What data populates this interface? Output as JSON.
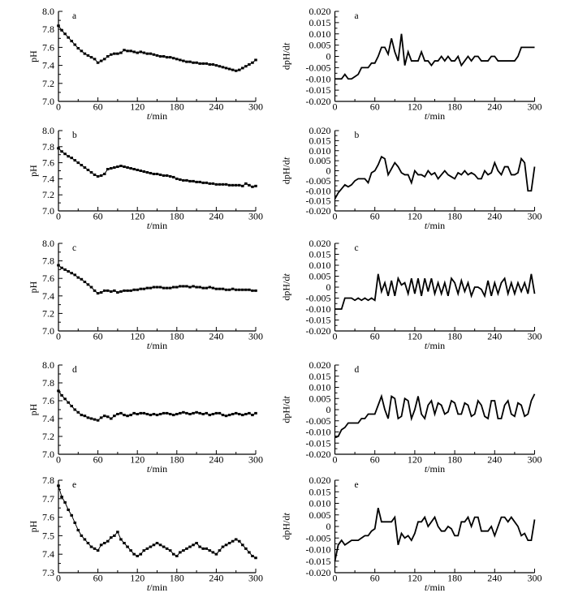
{
  "figure": {
    "background": "#ffffff",
    "ink": "#000000"
  },
  "chart_data": [
    {
      "panel_label": "a",
      "col": "left",
      "type": "line",
      "xlabel": "t/min",
      "ylabel": "pH",
      "xlim": [
        0,
        300
      ],
      "xtick_step": 60,
      "xminor_step": 30,
      "ylim": [
        7.0,
        8.0
      ],
      "ytick_step": 0.2,
      "yminor_step": 0.1,
      "ydecimals": 1,
      "marker": "square",
      "x_start": 0,
      "x_step": 5,
      "y": [
        7.84,
        7.79,
        7.75,
        7.71,
        7.67,
        7.63,
        7.59,
        7.56,
        7.53,
        7.51,
        7.49,
        7.47,
        7.43,
        7.45,
        7.47,
        7.5,
        7.52,
        7.53,
        7.53,
        7.54,
        7.57,
        7.56,
        7.56,
        7.55,
        7.54,
        7.55,
        7.54,
        7.53,
        7.53,
        7.52,
        7.51,
        7.5,
        7.5,
        7.49,
        7.49,
        7.48,
        7.47,
        7.46,
        7.45,
        7.44,
        7.44,
        7.43,
        7.43,
        7.42,
        7.42,
        7.42,
        7.41,
        7.41,
        7.4,
        7.39,
        7.38,
        7.37,
        7.36,
        7.35,
        7.34,
        7.35,
        7.37,
        7.39,
        7.41,
        7.43,
        7.46
      ]
    },
    {
      "panel_label": "a",
      "col": "right",
      "type": "line",
      "xlabel": "t/min",
      "ylabel": "dpH/dt",
      "xlim": [
        0,
        300
      ],
      "xtick_step": 60,
      "xminor_step": 30,
      "ylim": [
        -0.02,
        0.02
      ],
      "ytick_step": 0.005,
      "yminor_step": 0.0025,
      "ydecimals": 3,
      "marker": "none",
      "x_start": 0,
      "x_step": 5,
      "y": [
        -0.01,
        -0.01,
        -0.01,
        -0.008,
        -0.01,
        -0.01,
        -0.009,
        -0.008,
        -0.005,
        -0.005,
        -0.005,
        -0.003,
        -0.003,
        0.0,
        0.004,
        0.004,
        0.001,
        0.008,
        0.002,
        -0.002,
        0.01,
        -0.004,
        0.002,
        -0.002,
        -0.002,
        -0.002,
        0.002,
        -0.002,
        -0.002,
        -0.004,
        -0.002,
        -0.002,
        0.0,
        -0.002,
        0.0,
        -0.002,
        -0.002,
        0.0,
        -0.004,
        -0.002,
        0.0,
        -0.002,
        0.0,
        0.0,
        -0.002,
        -0.002,
        -0.002,
        0.0,
        0.0,
        -0.002,
        -0.002,
        -0.002,
        -0.002,
        -0.002,
        -0.002,
        0.0,
        0.004,
        0.004,
        0.004,
        0.004,
        0.004
      ]
    },
    {
      "panel_label": "b",
      "col": "left",
      "type": "line",
      "xlabel": "t/min",
      "ylabel": "pH",
      "xlim": [
        0,
        300
      ],
      "xtick_step": 60,
      "xminor_step": 30,
      "ylim": [
        7.0,
        8.0
      ],
      "ytick_step": 0.2,
      "yminor_step": 0.1,
      "ydecimals": 1,
      "marker": "square",
      "x_start": 0,
      "x_step": 5,
      "y": [
        7.78,
        7.74,
        7.71,
        7.68,
        7.66,
        7.63,
        7.6,
        7.57,
        7.54,
        7.51,
        7.48,
        7.45,
        7.43,
        7.44,
        7.46,
        7.52,
        7.53,
        7.54,
        7.55,
        7.56,
        7.55,
        7.54,
        7.53,
        7.52,
        7.51,
        7.5,
        7.49,
        7.48,
        7.47,
        7.46,
        7.46,
        7.45,
        7.44,
        7.44,
        7.43,
        7.42,
        7.4,
        7.39,
        7.38,
        7.38,
        7.37,
        7.37,
        7.36,
        7.36,
        7.35,
        7.35,
        7.34,
        7.34,
        7.33,
        7.33,
        7.33,
        7.33,
        7.32,
        7.32,
        7.32,
        7.32,
        7.31,
        7.34,
        7.32,
        7.3,
        7.31
      ]
    },
    {
      "panel_label": "b",
      "col": "right",
      "type": "line",
      "xlabel": "t/min",
      "ylabel": "dpH/dt",
      "xlim": [
        0,
        300
      ],
      "xtick_step": 60,
      "xminor_step": 30,
      "ylim": [
        -0.02,
        0.02
      ],
      "ytick_step": 0.005,
      "yminor_step": 0.0025,
      "ydecimals": 3,
      "marker": "none",
      "x_start": 0,
      "x_step": 5,
      "y": [
        -0.014,
        -0.011,
        -0.009,
        -0.007,
        -0.008,
        -0.007,
        -0.005,
        -0.004,
        -0.004,
        -0.004,
        -0.006,
        -0.001,
        0.0,
        0.003,
        0.007,
        0.006,
        -0.002,
        0.001,
        0.004,
        0.002,
        -0.001,
        -0.002,
        -0.002,
        -0.006,
        0.0,
        -0.002,
        -0.002,
        -0.003,
        0.0,
        -0.002,
        -0.001,
        -0.004,
        -0.002,
        0.0,
        -0.002,
        -0.003,
        -0.004,
        -0.001,
        -0.002,
        0.0,
        -0.002,
        -0.001,
        -0.002,
        -0.004,
        -0.004,
        0.0,
        -0.002,
        -0.001,
        0.004,
        0.0,
        -0.002,
        0.002,
        0.002,
        -0.002,
        -0.002,
        -0.001,
        0.006,
        0.004,
        -0.01,
        -0.01,
        0.002
      ]
    },
    {
      "panel_label": "c",
      "col": "left",
      "type": "line",
      "xlabel": "t/min",
      "ylabel": "pH",
      "xlim": [
        0,
        300
      ],
      "xtick_step": 60,
      "xminor_step": 30,
      "ylim": [
        7.0,
        8.0
      ],
      "ytick_step": 0.2,
      "yminor_step": 0.1,
      "ydecimals": 1,
      "marker": "square",
      "x_start": 0,
      "x_step": 5,
      "y": [
        7.75,
        7.72,
        7.7,
        7.68,
        7.66,
        7.64,
        7.61,
        7.59,
        7.56,
        7.53,
        7.5,
        7.46,
        7.43,
        7.44,
        7.46,
        7.46,
        7.45,
        7.46,
        7.44,
        7.45,
        7.46,
        7.46,
        7.46,
        7.47,
        7.47,
        7.48,
        7.48,
        7.49,
        7.49,
        7.5,
        7.5,
        7.5,
        7.49,
        7.49,
        7.49,
        7.5,
        7.5,
        7.51,
        7.51,
        7.51,
        7.5,
        7.51,
        7.5,
        7.5,
        7.49,
        7.49,
        7.5,
        7.49,
        7.48,
        7.48,
        7.48,
        7.47,
        7.47,
        7.48,
        7.47,
        7.47,
        7.47,
        7.47,
        7.47,
        7.46,
        7.46
      ]
    },
    {
      "panel_label": "c",
      "col": "right",
      "type": "line",
      "xlabel": "t/min",
      "ylabel": "dpH/dt",
      "xlim": [
        0,
        300
      ],
      "xtick_step": 60,
      "xminor_step": 30,
      "ylim": [
        -0.02,
        0.02
      ],
      "ytick_step": 0.005,
      "yminor_step": 0.0025,
      "ydecimals": 3,
      "marker": "none",
      "x_start": 0,
      "x_step": 5,
      "y": [
        -0.01,
        -0.01,
        -0.01,
        -0.005,
        -0.005,
        -0.005,
        -0.006,
        -0.005,
        -0.006,
        -0.005,
        -0.006,
        -0.005,
        -0.006,
        0.006,
        -0.002,
        0.002,
        -0.004,
        0.003,
        -0.004,
        0.004,
        0.001,
        0.002,
        -0.003,
        0.004,
        -0.003,
        0.004,
        -0.004,
        0.004,
        -0.002,
        0.004,
        -0.003,
        0.002,
        -0.003,
        0.002,
        -0.004,
        0.004,
        0.002,
        -0.003,
        0.003,
        -0.002,
        0.002,
        -0.004,
        0.0,
        0.0,
        -0.001,
        -0.004,
        0.003,
        -0.004,
        0.002,
        -0.003,
        0.002,
        0.004,
        -0.003,
        0.002,
        -0.003,
        0.002,
        -0.002,
        0.002,
        -0.003,
        0.006,
        -0.003
      ]
    },
    {
      "panel_label": "d",
      "col": "left",
      "type": "line",
      "xlabel": "t/min",
      "ylabel": "pH",
      "xlim": [
        0,
        300
      ],
      "xtick_step": 60,
      "xminor_step": 30,
      "ylim": [
        7.0,
        8.0
      ],
      "ytick_step": 0.2,
      "yminor_step": 0.1,
      "ydecimals": 1,
      "marker": "square",
      "x_start": 0,
      "x_step": 5,
      "y": [
        7.71,
        7.66,
        7.62,
        7.58,
        7.54,
        7.5,
        7.47,
        7.44,
        7.43,
        7.41,
        7.4,
        7.39,
        7.38,
        7.41,
        7.43,
        7.42,
        7.4,
        7.43,
        7.45,
        7.46,
        7.44,
        7.43,
        7.44,
        7.46,
        7.45,
        7.46,
        7.46,
        7.45,
        7.44,
        7.45,
        7.44,
        7.45,
        7.46,
        7.46,
        7.45,
        7.44,
        7.45,
        7.46,
        7.47,
        7.46,
        7.45,
        7.46,
        7.47,
        7.46,
        7.45,
        7.46,
        7.44,
        7.45,
        7.46,
        7.46,
        7.44,
        7.43,
        7.44,
        7.45,
        7.46,
        7.45,
        7.44,
        7.45,
        7.46,
        7.44,
        7.46
      ]
    },
    {
      "panel_label": "d",
      "col": "right",
      "type": "line",
      "xlabel": "t/min",
      "ylabel": "dpH/dt",
      "xlim": [
        0,
        300
      ],
      "xtick_step": 60,
      "xminor_step": 30,
      "ylim": [
        -0.02,
        0.02
      ],
      "ytick_step": 0.005,
      "yminor_step": 0.0025,
      "ydecimals": 3,
      "marker": "none",
      "x_start": 0,
      "x_step": 5,
      "y": [
        -0.012,
        -0.012,
        -0.009,
        -0.008,
        -0.006,
        -0.006,
        -0.006,
        -0.006,
        -0.004,
        -0.004,
        -0.002,
        -0.002,
        -0.002,
        0.002,
        0.006,
        0.0,
        -0.004,
        0.006,
        0.005,
        -0.004,
        -0.003,
        0.005,
        0.004,
        -0.004,
        0.0,
        0.006,
        -0.002,
        -0.004,
        0.002,
        0.004,
        -0.002,
        0.003,
        0.002,
        -0.002,
        -0.001,
        0.004,
        0.003,
        -0.002,
        -0.002,
        0.003,
        0.002,
        -0.003,
        -0.002,
        0.004,
        0.002,
        -0.003,
        -0.004,
        0.004,
        0.004,
        -0.004,
        -0.004,
        0.002,
        0.004,
        -0.002,
        -0.003,
        0.003,
        0.002,
        -0.003,
        -0.002,
        0.004,
        0.007
      ]
    },
    {
      "panel_label": "e",
      "col": "left",
      "type": "line",
      "xlabel": "t/min",
      "ylabel": "pH",
      "xlim": [
        0,
        300
      ],
      "xtick_step": 60,
      "xminor_step": 30,
      "ylim": [
        7.3,
        7.8
      ],
      "ytick_step": 0.1,
      "yminor_step": 0.05,
      "ydecimals": 1,
      "marker": "square",
      "x_start": 0,
      "x_step": 5,
      "y": [
        7.77,
        7.71,
        7.68,
        7.64,
        7.61,
        7.57,
        7.53,
        7.5,
        7.48,
        7.46,
        7.44,
        7.43,
        7.42,
        7.45,
        7.46,
        7.47,
        7.49,
        7.5,
        7.52,
        7.48,
        7.46,
        7.44,
        7.42,
        7.4,
        7.39,
        7.4,
        7.42,
        7.43,
        7.44,
        7.45,
        7.46,
        7.45,
        7.44,
        7.43,
        7.42,
        7.4,
        7.39,
        7.41,
        7.42,
        7.43,
        7.44,
        7.45,
        7.46,
        7.44,
        7.43,
        7.43,
        7.42,
        7.41,
        7.4,
        7.42,
        7.44,
        7.45,
        7.46,
        7.47,
        7.48,
        7.47,
        7.45,
        7.43,
        7.41,
        7.39,
        7.38
      ]
    },
    {
      "panel_label": "e",
      "col": "right",
      "type": "line",
      "xlabel": "t/min",
      "ylabel": "dpH/dt",
      "xlim": [
        0,
        300
      ],
      "xtick_step": 60,
      "xminor_step": 30,
      "ylim": [
        -0.02,
        0.02
      ],
      "ytick_step": 0.005,
      "yminor_step": 0.0025,
      "ydecimals": 3,
      "marker": "none",
      "x_start": 0,
      "x_step": 5,
      "y": [
        -0.015,
        -0.008,
        -0.006,
        -0.008,
        -0.007,
        -0.006,
        -0.006,
        -0.006,
        -0.005,
        -0.004,
        -0.004,
        -0.002,
        -0.001,
        0.008,
        0.002,
        0.002,
        0.002,
        0.002,
        0.004,
        -0.008,
        -0.003,
        -0.005,
        -0.004,
        -0.006,
        -0.003,
        0.002,
        0.002,
        0.004,
        0.0,
        0.002,
        0.004,
        0.0,
        -0.002,
        -0.002,
        0.0,
        -0.001,
        -0.004,
        -0.004,
        0.002,
        0.002,
        0.004,
        0.0,
        0.004,
        0.004,
        -0.002,
        -0.002,
        -0.002,
        0.0,
        -0.004,
        0.0,
        0.004,
        0.004,
        0.002,
        0.004,
        0.002,
        0.0,
        -0.004,
        -0.003,
        -0.006,
        -0.006,
        0.003
      ]
    }
  ]
}
